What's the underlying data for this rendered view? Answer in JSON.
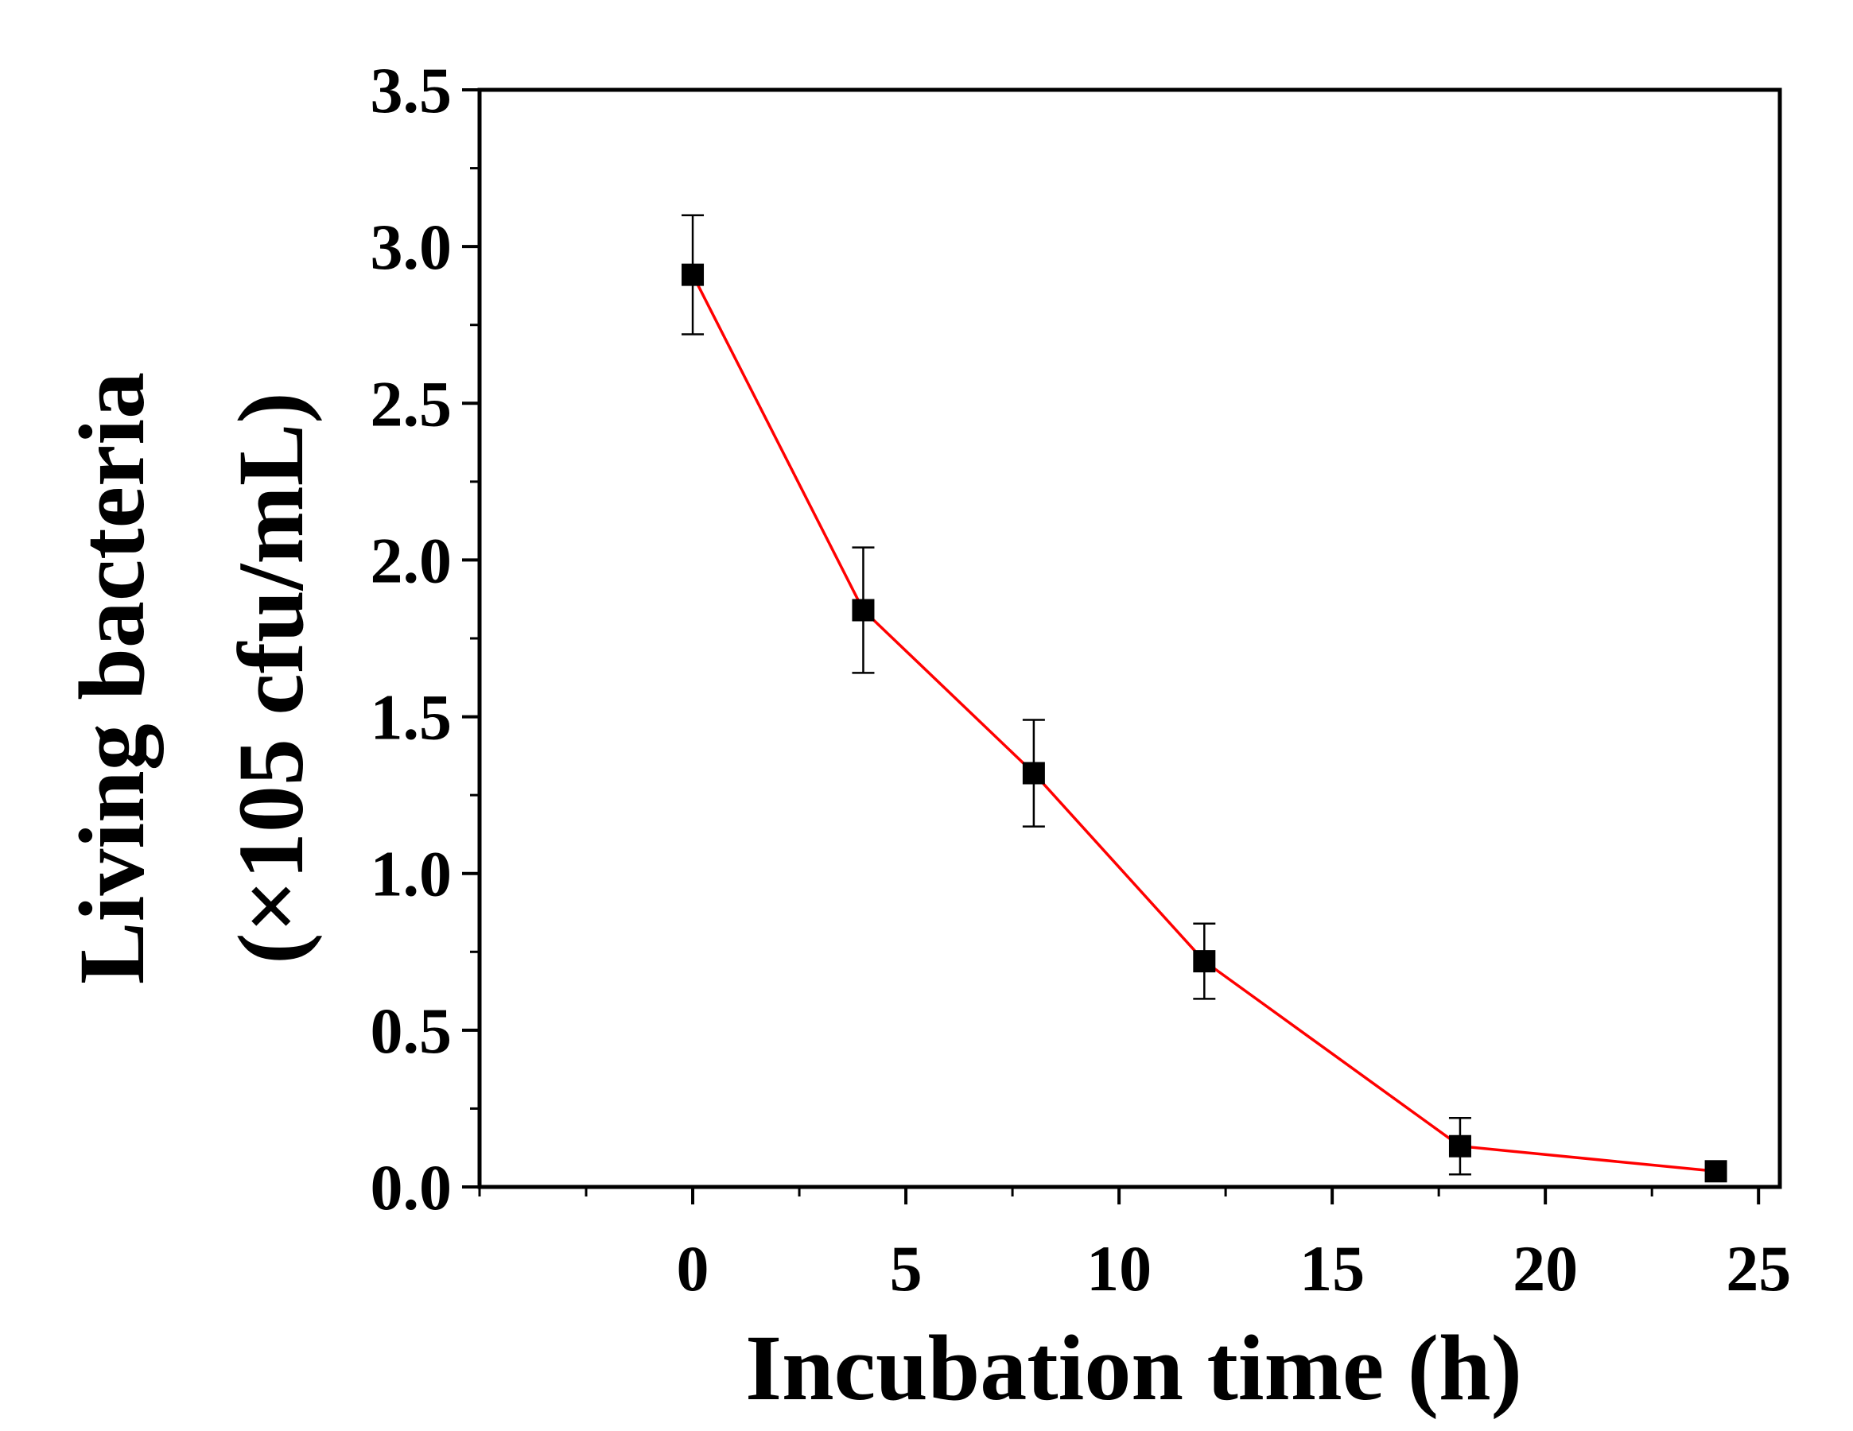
{
  "chart_data": {
    "type": "line",
    "title": "",
    "xlabel": "Incubation time (h)",
    "ylabel_line1": "Living bacteria",
    "ylabel_line2": "(×105 cfu/mL)",
    "xlim": [
      -5,
      25.5
    ],
    "ylim": [
      0,
      3.5
    ],
    "x_ticks": [
      0,
      5,
      10,
      15,
      20,
      25
    ],
    "x_tick_labels": [
      "0",
      "5",
      "10",
      "15",
      "20",
      "25"
    ],
    "y_ticks": [
      0,
      0.5,
      1.0,
      1.5,
      2.0,
      2.5,
      3.0,
      3.5
    ],
    "y_tick_labels": [
      "0.0",
      "0.5",
      "1.0",
      "1.5",
      "2.0",
      "2.5",
      "3.0",
      "3.5"
    ],
    "grid": false,
    "series": [
      {
        "name": "Living bacteria",
        "marker": "square",
        "line_color": "#ff0000",
        "marker_color": "#000000",
        "x": [
          0,
          4,
          8,
          12,
          18,
          24
        ],
        "y": [
          2.91,
          1.84,
          1.32,
          0.72,
          0.13,
          0.05
        ],
        "error": [
          0.19,
          0.2,
          0.17,
          0.12,
          0.09,
          0.0
        ]
      }
    ]
  }
}
